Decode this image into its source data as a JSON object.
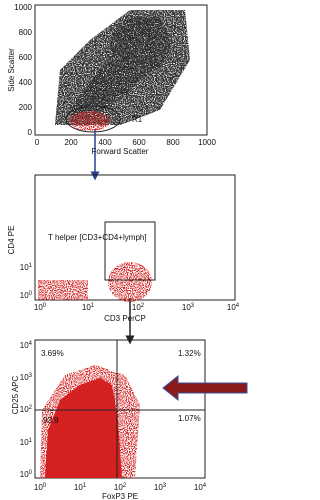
{
  "panels": [
    {
      "y_label": "Side Scatter",
      "x_label": "Forward Scatter",
      "y_ticks": [
        "1000",
        "800",
        "600",
        "400",
        "200",
        "0"
      ],
      "x_ticks": [
        "0",
        "200",
        "400",
        "600",
        "800",
        "1000"
      ],
      "gate": "R1"
    },
    {
      "y_label": "CD4 PE",
      "x_label": "CD3 PerCP",
      "y_ticks": [
        {
          "base": "10",
          "exp": "1"
        },
        {
          "base": "10",
          "exp": "0"
        }
      ],
      "x_ticks": [
        {
          "base": "10",
          "exp": "0"
        },
        {
          "base": "10",
          "exp": "1"
        },
        {
          "base": "10",
          "exp": "2"
        },
        {
          "base": "10",
          "exp": "3"
        },
        {
          "base": "10",
          "exp": "4"
        }
      ],
      "gate": "T helper [CD3+CD4+lymph]"
    },
    {
      "y_label": "CD25 APC",
      "x_label": "FoxP3 PE",
      "y_ticks": [
        {
          "base": "10",
          "exp": "4"
        },
        {
          "base": "10",
          "exp": "3"
        },
        {
          "base": "10",
          "exp": "2"
        },
        {
          "base": "10",
          "exp": "1"
        },
        {
          "base": "10",
          "exp": "0"
        }
      ],
      "x_ticks": [
        {
          "base": "10",
          "exp": "0"
        },
        {
          "base": "10",
          "exp": "1"
        },
        {
          "base": "10",
          "exp": "2"
        },
        {
          "base": "10",
          "exp": "3"
        },
        {
          "base": "10",
          "exp": "4"
        }
      ],
      "quadrants": [
        "3.69%",
        "1.32%",
        "93.9",
        "1.07%"
      ]
    }
  ]
}
